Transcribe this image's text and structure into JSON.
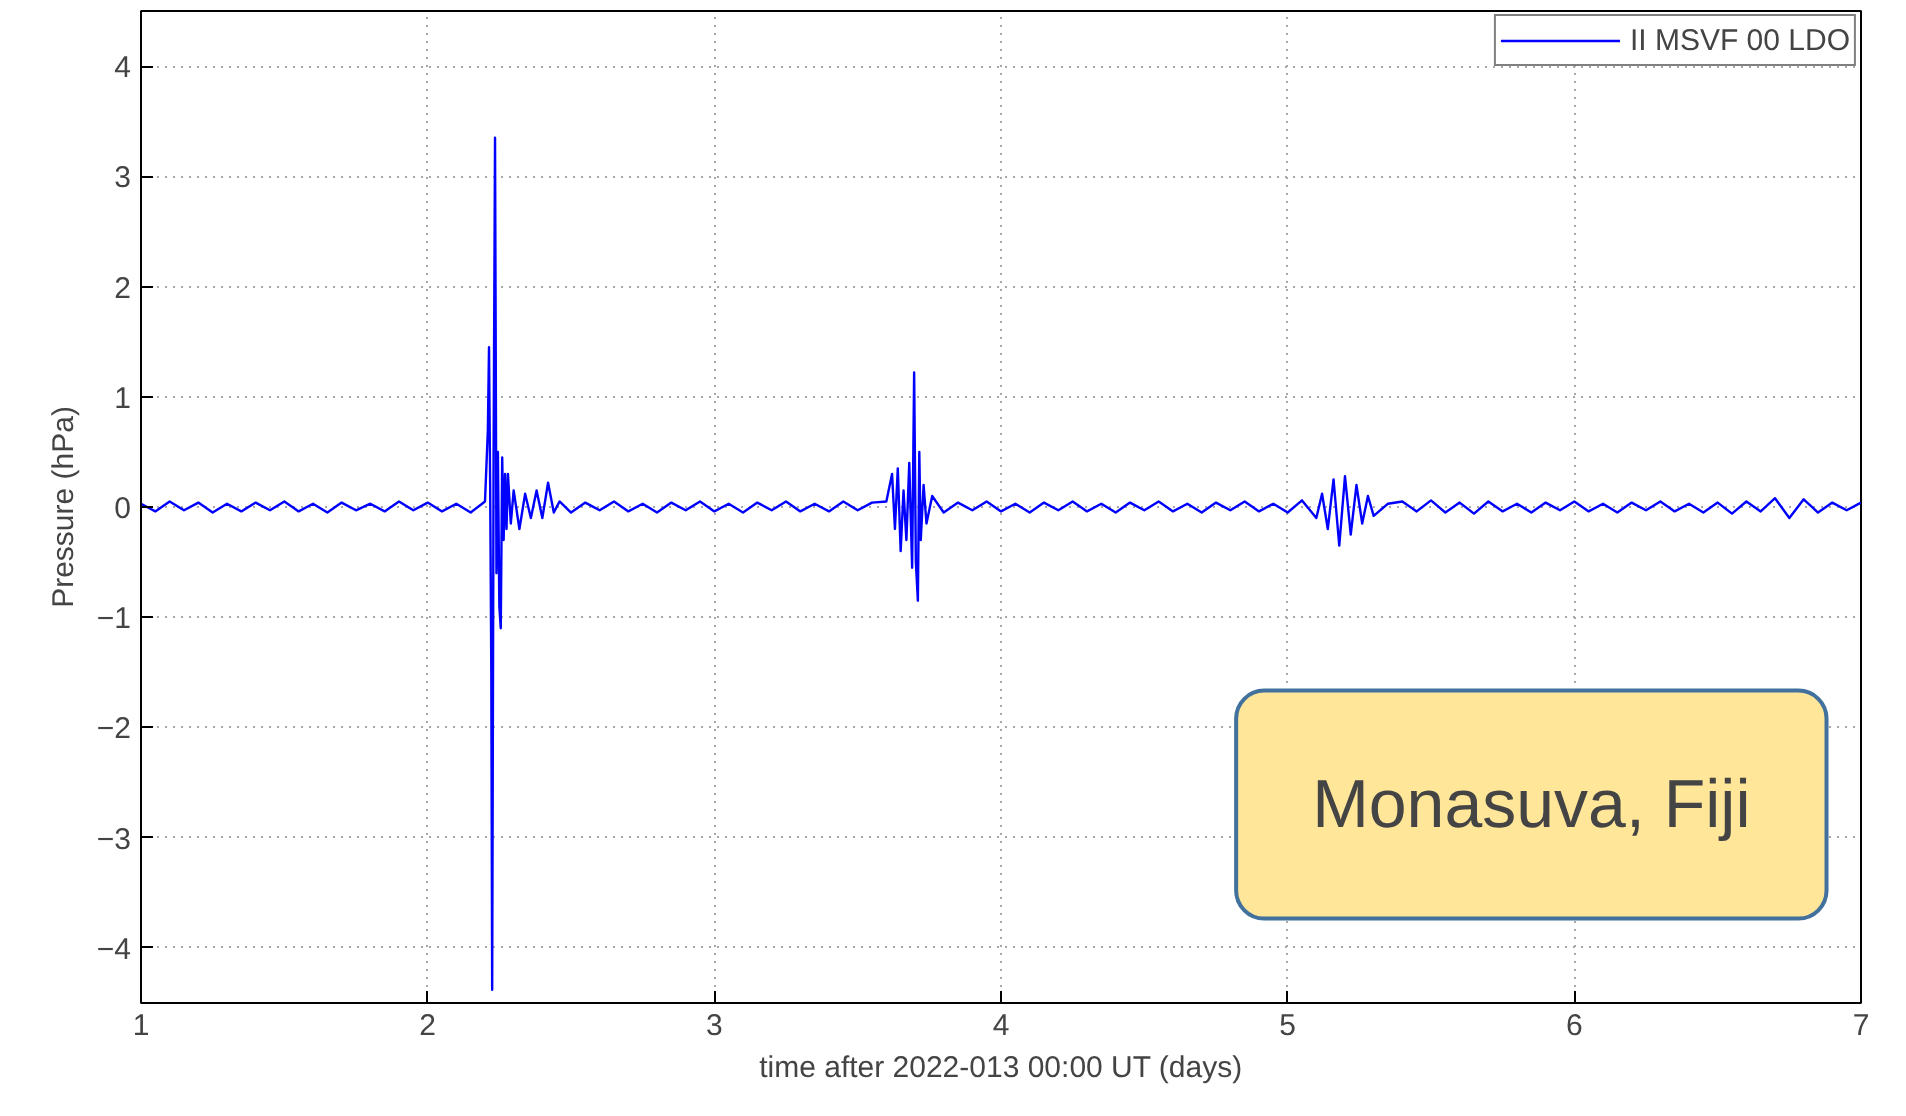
{
  "chart_data": {
    "type": "line",
    "xlabel": "time after 2022-013 00:00 UT (days)",
    "ylabel": "Pressure (hPa)",
    "xlim": [
      1,
      7
    ],
    "ylim": [
      -4.5,
      4.5
    ],
    "xticks": [
      1,
      2,
      3,
      4,
      5,
      6,
      7
    ],
    "yticks": [
      -4,
      -3,
      -2,
      -1,
      0,
      1,
      2,
      3,
      4
    ],
    "grid": true,
    "legend": "top right",
    "line_style": "solid",
    "marker": "none",
    "annotations": [
      "Monasuva, Fiji"
    ],
    "series": [
      {
        "name": "II MSVF 00 LDO",
        "color": "#0000ff",
        "x": [
          1.0,
          1.05,
          1.1,
          1.15,
          1.2,
          1.25,
          1.3,
          1.35,
          1.4,
          1.45,
          1.5,
          1.55,
          1.6,
          1.65,
          1.7,
          1.75,
          1.8,
          1.85,
          1.9,
          1.95,
          2.0,
          2.05,
          2.1,
          2.15,
          2.2,
          2.21,
          2.214,
          2.218,
          2.222,
          2.225,
          2.23,
          2.235,
          2.24,
          2.245,
          2.25,
          2.255,
          2.26,
          2.265,
          2.27,
          2.275,
          2.28,
          2.29,
          2.3,
          2.32,
          2.34,
          2.36,
          2.38,
          2.4,
          2.42,
          2.44,
          2.46,
          2.5,
          2.55,
          2.6,
          2.65,
          2.7,
          2.75,
          2.8,
          2.85,
          2.9,
          2.95,
          3.0,
          3.05,
          3.1,
          3.15,
          3.2,
          3.25,
          3.3,
          3.35,
          3.4,
          3.45,
          3.5,
          3.55,
          3.6,
          3.62,
          3.63,
          3.64,
          3.65,
          3.66,
          3.67,
          3.68,
          3.69,
          3.697,
          3.703,
          3.71,
          3.715,
          3.72,
          3.73,
          3.74,
          3.76,
          3.8,
          3.85,
          3.9,
          3.95,
          4.0,
          4.05,
          4.1,
          4.15,
          4.2,
          4.25,
          4.3,
          4.35,
          4.4,
          4.45,
          4.5,
          4.55,
          4.6,
          4.65,
          4.7,
          4.75,
          4.8,
          4.85,
          4.9,
          4.95,
          5.0,
          5.05,
          5.1,
          5.12,
          5.14,
          5.16,
          5.18,
          5.2,
          5.22,
          5.24,
          5.26,
          5.28,
          5.3,
          5.35,
          5.4,
          5.45,
          5.5,
          5.55,
          5.6,
          5.65,
          5.7,
          5.75,
          5.8,
          5.85,
          5.9,
          5.95,
          6.0,
          6.05,
          6.1,
          6.15,
          6.2,
          6.25,
          6.3,
          6.35,
          6.4,
          6.45,
          6.5,
          6.55,
          6.6,
          6.65,
          6.7,
          6.75,
          6.8,
          6.85,
          6.9,
          6.95,
          7.0
        ],
        "values": [
          0.03,
          -0.04,
          0.05,
          -0.03,
          0.04,
          -0.05,
          0.03,
          -0.04,
          0.04,
          -0.03,
          0.05,
          -0.04,
          0.03,
          -0.05,
          0.04,
          -0.03,
          0.03,
          -0.04,
          0.05,
          -0.03,
          0.04,
          -0.04,
          0.03,
          -0.05,
          0.05,
          0.7,
          1.45,
          0.2,
          -1.5,
          -4.38,
          0.5,
          3.35,
          -0.6,
          0.5,
          -0.9,
          -1.1,
          0.45,
          -0.3,
          0.3,
          -0.2,
          0.3,
          -0.15,
          0.15,
          -0.2,
          0.12,
          -0.1,
          0.15,
          -0.1,
          0.22,
          -0.05,
          0.05,
          -0.05,
          0.04,
          -0.03,
          0.05,
          -0.04,
          0.03,
          -0.05,
          0.04,
          -0.03,
          0.05,
          -0.04,
          0.03,
          -0.05,
          0.04,
          -0.03,
          0.05,
          -0.04,
          0.03,
          -0.04,
          0.05,
          -0.03,
          0.04,
          0.05,
          0.3,
          -0.2,
          0.35,
          -0.4,
          0.15,
          -0.3,
          0.4,
          -0.55,
          1.22,
          -0.5,
          -0.85,
          0.5,
          -0.3,
          0.2,
          -0.15,
          0.1,
          -0.05,
          0.04,
          -0.03,
          0.05,
          -0.04,
          0.03,
          -0.05,
          0.04,
          -0.03,
          0.05,
          -0.04,
          0.03,
          -0.05,
          0.04,
          -0.03,
          0.05,
          -0.04,
          0.03,
          -0.05,
          0.04,
          -0.03,
          0.05,
          -0.04,
          0.03,
          -0.05,
          0.06,
          -0.1,
          0.12,
          -0.2,
          0.25,
          -0.35,
          0.28,
          -0.25,
          0.2,
          -0.15,
          0.1,
          -0.08,
          0.03,
          0.05,
          -0.04,
          0.06,
          -0.05,
          0.04,
          -0.06,
          0.05,
          -0.04,
          0.03,
          -0.05,
          0.04,
          -0.03,
          0.05,
          -0.04,
          0.03,
          -0.05,
          0.04,
          -0.03,
          0.05,
          -0.04,
          0.03,
          -0.05,
          0.04,
          -0.06,
          0.05,
          -0.04,
          0.08,
          -0.1,
          0.07,
          -0.05,
          0.04,
          -0.03,
          0.04
        ]
      }
    ]
  }
}
